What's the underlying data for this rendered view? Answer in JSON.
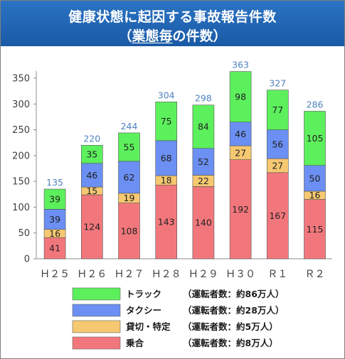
{
  "header": {
    "title_line1": "健康状態に起因する事故報告件数",
    "title_open": "（",
    "title_emph": "業態毎",
    "title_rest": "の件数）"
  },
  "colors": {
    "header_bg": "#1f63b0",
    "truck": "#5cf05c",
    "taxi": "#6b8ff2",
    "charter": "#f5c871",
    "bus": "#f2777c",
    "total_label": "#4f81bd"
  },
  "chart_data": {
    "type": "bar",
    "stacked": true,
    "title": "健康状態に起因する事故報告件数（業態毎の件数）",
    "categories": [
      "Ｈ２５",
      "Ｈ２６",
      "Ｈ２７",
      "Ｈ２８",
      "Ｈ２９",
      "Ｈ３０",
      "Ｒ１",
      "Ｒ２"
    ],
    "series": [
      {
        "key": "bus",
        "name": "乗合",
        "note": "（運転者数：約8万人）",
        "color": "#f2777c",
        "values": [
          41,
          124,
          108,
          143,
          140,
          192,
          167,
          115
        ]
      },
      {
        "key": "charter",
        "name": "貸切・特定",
        "note": "（運転者数：約5万人）",
        "color": "#f5c871",
        "values": [
          16,
          15,
          19,
          18,
          22,
          27,
          27,
          16
        ]
      },
      {
        "key": "taxi",
        "name": "タクシー",
        "note": "（運転者数：約28万人）",
        "color": "#6b8ff2",
        "values": [
          39,
          46,
          62,
          68,
          52,
          46,
          56,
          50
        ]
      },
      {
        "key": "truck",
        "name": "トラック",
        "note": "（運転者数：約86万人）",
        "color": "#5cf05c",
        "values": [
          39,
          35,
          55,
          75,
          84,
          98,
          77,
          105
        ]
      }
    ],
    "totals": [
      135,
      220,
      244,
      304,
      298,
      363,
      327,
      286
    ],
    "y_ticks": [
      "0",
      "50",
      "100",
      "150",
      "200",
      "250",
      "300",
      "350"
    ],
    "ylim": [
      0,
      370
    ],
    "legend_order": [
      "truck",
      "taxi",
      "charter",
      "bus"
    ],
    "legend_position": "bottom",
    "grid": false
  }
}
